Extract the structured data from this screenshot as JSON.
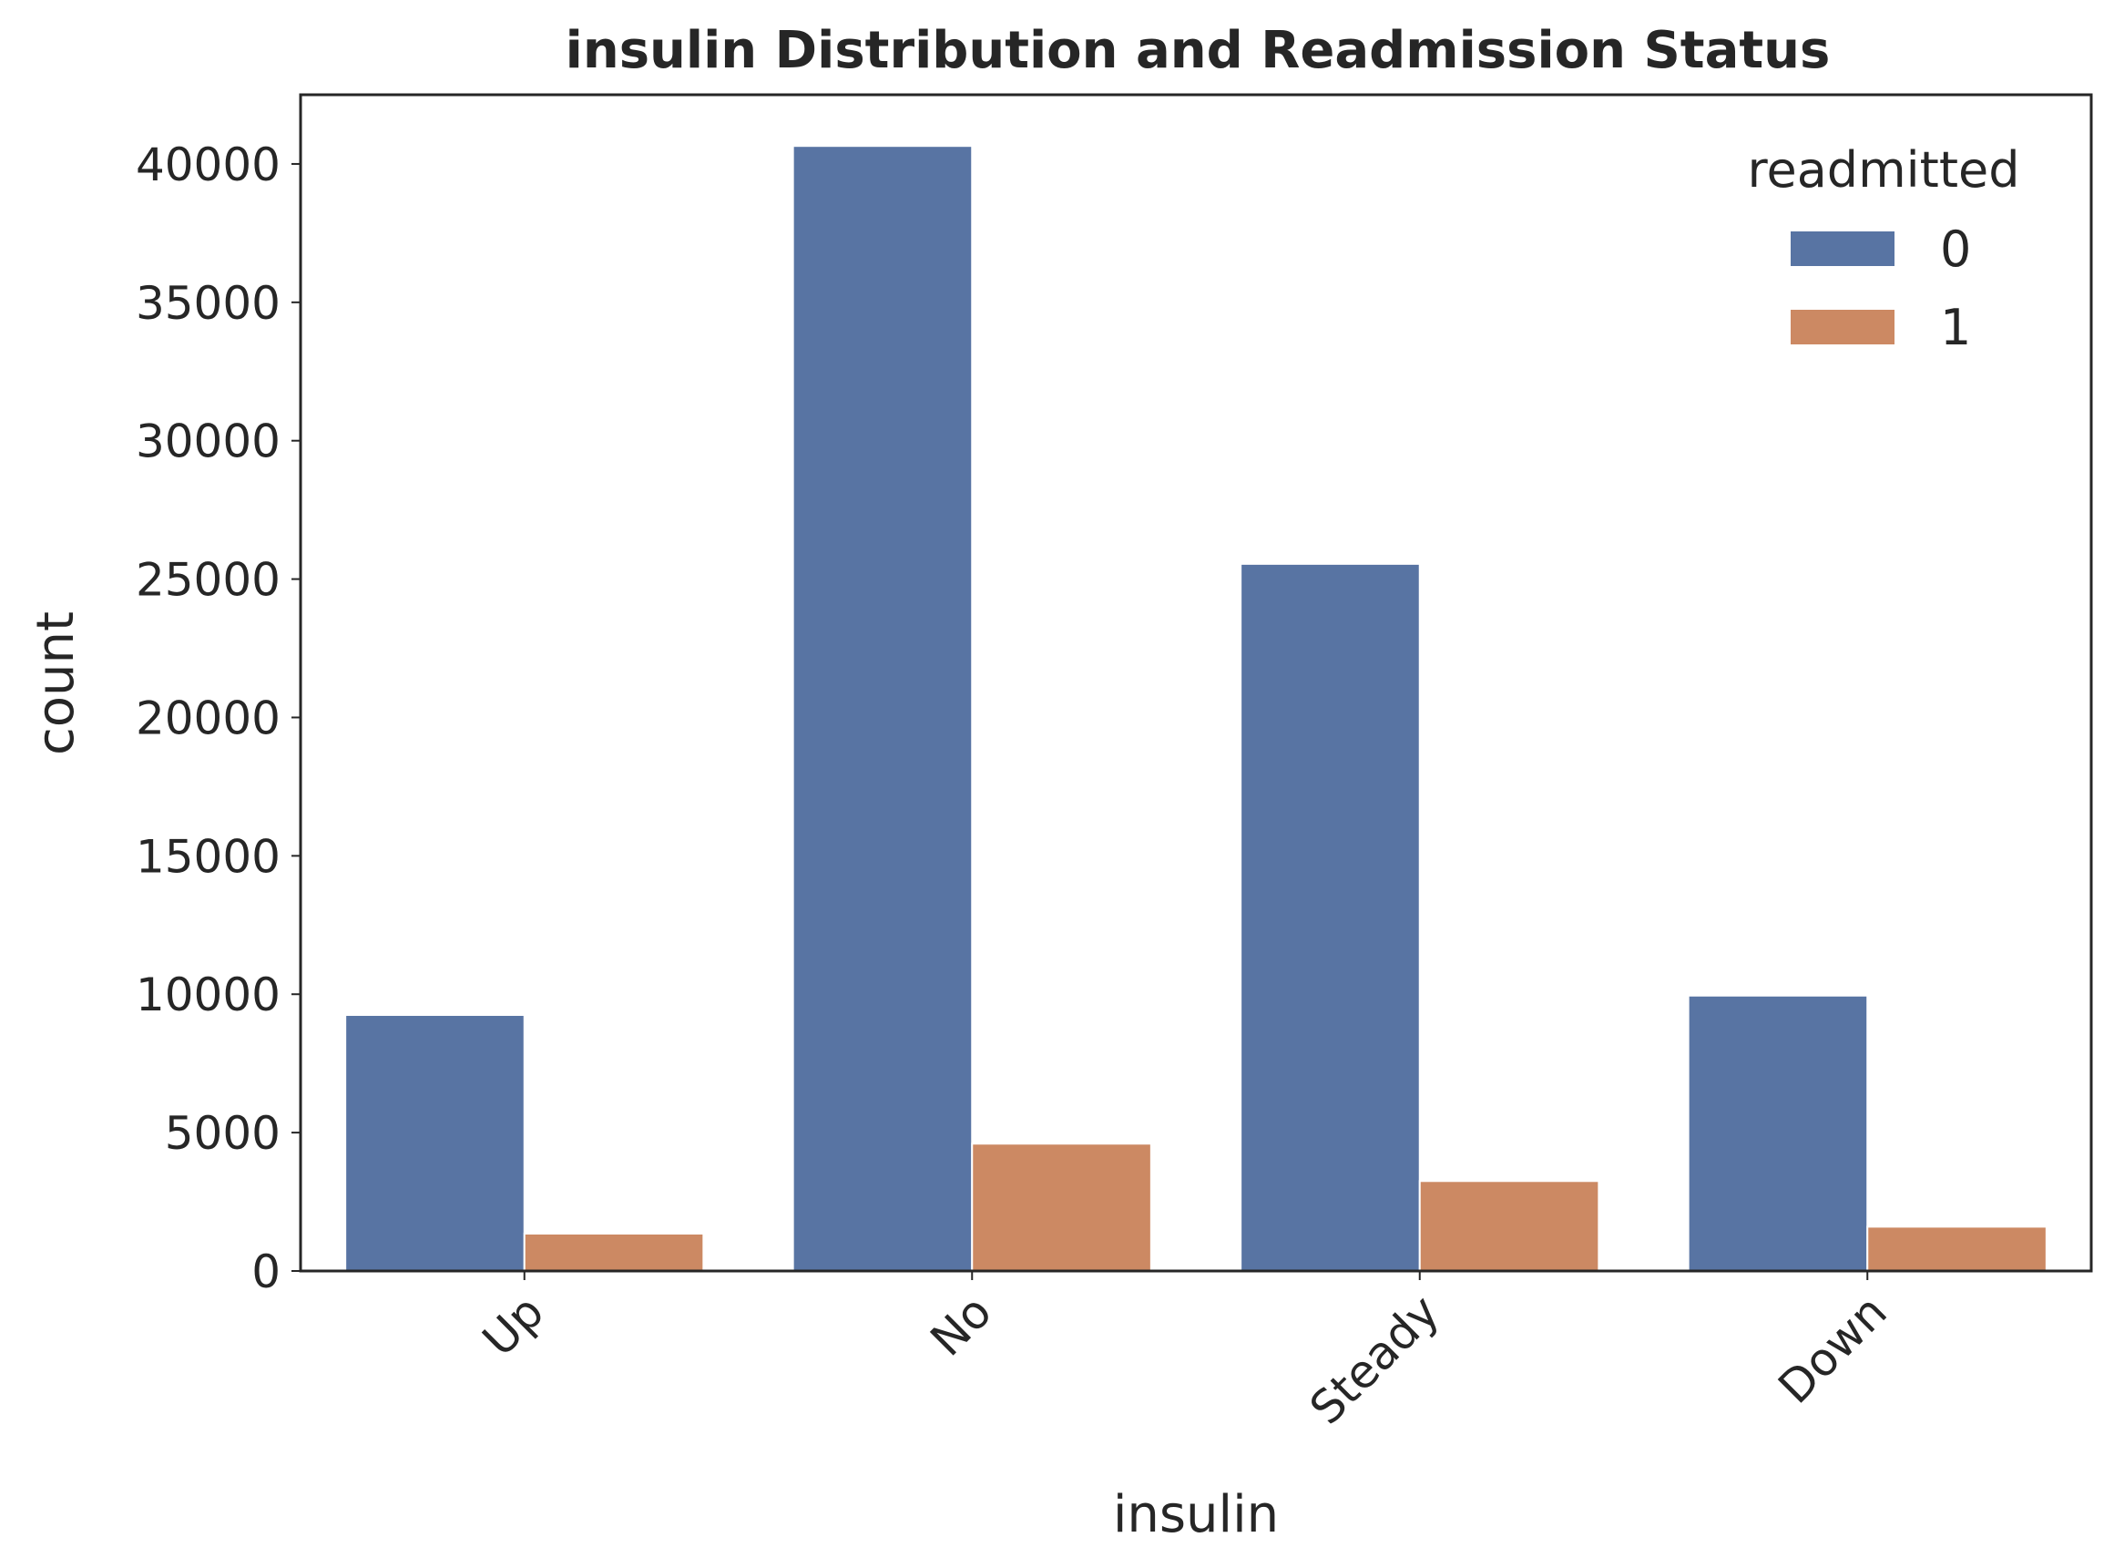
{
  "chart_data": {
    "type": "bar",
    "title": "insulin Distribution and Readmission Status",
    "xlabel": "insulin",
    "ylabel": "count",
    "categories": [
      "Up",
      "No",
      "Steady",
      "Down"
    ],
    "series": [
      {
        "name": "0",
        "color": "#5874a3",
        "values": [
          9250,
          40650,
          25550,
          9950
        ]
      },
      {
        "name": "1",
        "color": "#cc8963",
        "values": [
          1350,
          4600,
          3250,
          1600
        ]
      }
    ],
    "ylim": [
      0,
      42500
    ],
    "yticks": [
      0,
      5000,
      10000,
      15000,
      20000,
      25000,
      30000,
      35000,
      40000
    ],
    "legend": {
      "title": "readmitted",
      "placement": "top-right"
    },
    "grid": false
  }
}
